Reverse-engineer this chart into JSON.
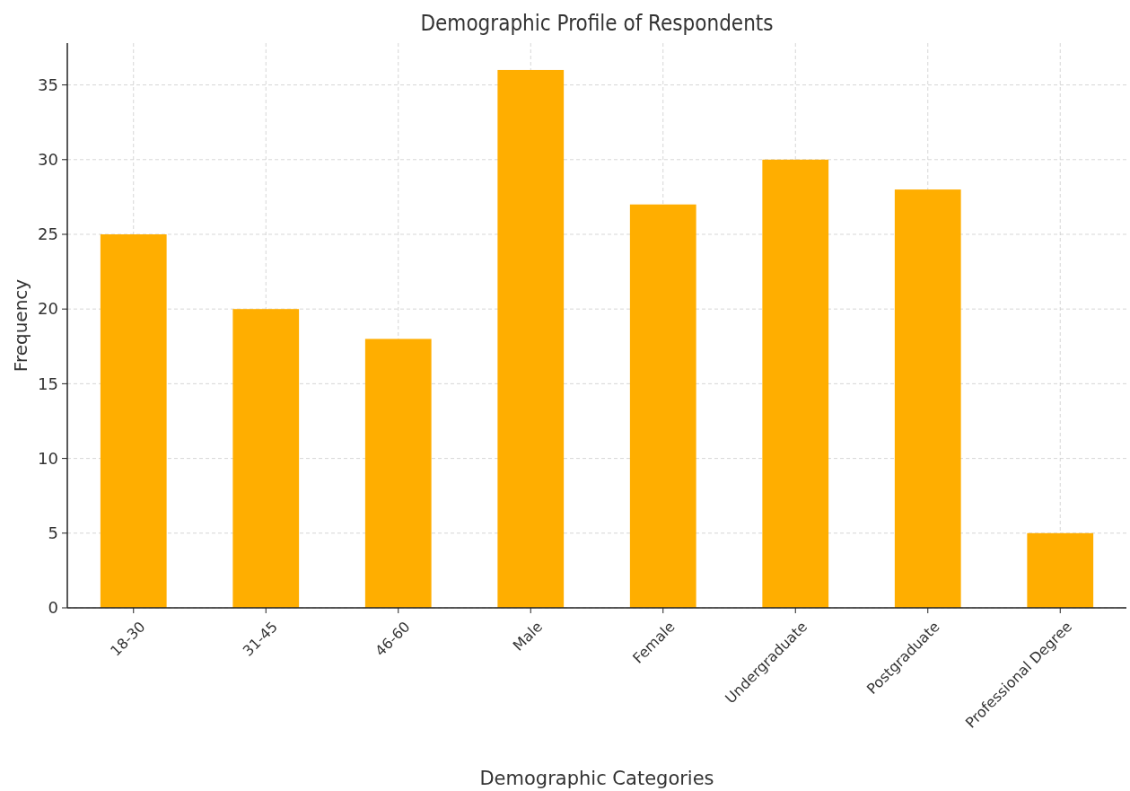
{
  "chart_data": {
    "type": "bar",
    "title": "Demographic Profile of Respondents",
    "xlabel": "Demographic Categories",
    "ylabel": "Frequency",
    "categories": [
      "18-30",
      "31-45",
      "46-60",
      "Male",
      "Female",
      "Undergraduate",
      "Postgraduate",
      "Professional Degree"
    ],
    "values": [
      25,
      20,
      18,
      36,
      27,
      30,
      28,
      5
    ],
    "color": "#ffae00",
    "ylim": [
      0,
      37.8
    ],
    "yticks": [
      0,
      5,
      10,
      15,
      20,
      25,
      30,
      35
    ],
    "grid": true
  }
}
